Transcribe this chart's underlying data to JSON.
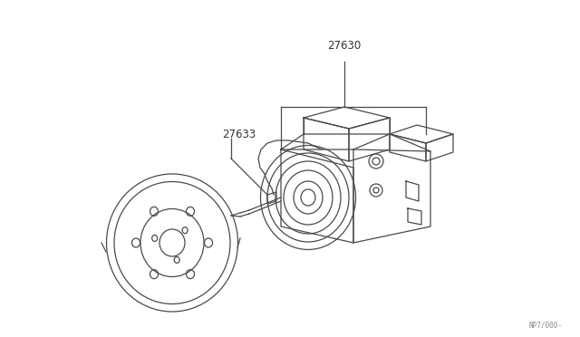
{
  "background_color": "#ffffff",
  "label_27630": "27630",
  "label_27633": "27633",
  "ref_code": "NP7/000-",
  "line_color": "#4a4a4a",
  "label_color": "#333333",
  "fig_width": 6.4,
  "fig_height": 3.72
}
